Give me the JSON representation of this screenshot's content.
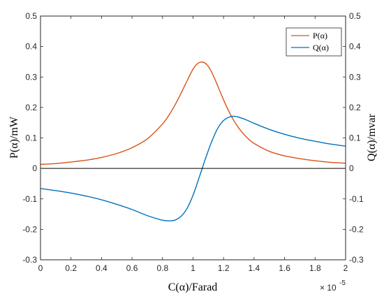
{
  "chart_data": {
    "type": "line",
    "title": "",
    "xlabel": "C(α)/Farad",
    "ylabel_left": "P(α)/mW",
    "ylabel_right": "Q(α)/mvar",
    "x_exponent_base": "× 10",
    "x_exponent_power": "-5",
    "xlim": [
      0,
      2
    ],
    "ylim": [
      -0.3,
      0.5
    ],
    "x_ticks": [
      "0",
      "0.2",
      "0.4",
      "0.6",
      "0.8",
      "1",
      "1.2",
      "1.4",
      "1.6",
      "1.8",
      "2"
    ],
    "y_ticks": [
      "-0.3",
      "-0.2",
      "-0.1",
      "0",
      "0.1",
      "0.2",
      "0.3",
      "0.4",
      "0.5"
    ],
    "grid": false,
    "legend_position": "top-right",
    "zero_line": true,
    "series": [
      {
        "name": "P(α)",
        "color": "#D95319",
        "x": [
          0,
          0.1,
          0.2,
          0.3,
          0.4,
          0.5,
          0.6,
          0.7,
          0.8,
          0.85,
          0.9,
          0.95,
          1.0,
          1.03,
          1.06,
          1.09,
          1.12,
          1.15,
          1.2,
          1.25,
          1.3,
          1.35,
          1.4,
          1.5,
          1.6,
          1.7,
          1.8,
          1.9,
          2.0
        ],
        "values": [
          0.013,
          0.016,
          0.021,
          0.027,
          0.036,
          0.049,
          0.068,
          0.097,
          0.146,
          0.181,
          0.225,
          0.276,
          0.326,
          0.344,
          0.349,
          0.341,
          0.318,
          0.285,
          0.225,
          0.172,
          0.132,
          0.103,
          0.082,
          0.056,
          0.041,
          0.032,
          0.025,
          0.02,
          0.017
        ]
      },
      {
        "name": "Q(α)",
        "color": "#0072BD",
        "x": [
          0,
          0.1,
          0.2,
          0.3,
          0.4,
          0.5,
          0.6,
          0.7,
          0.8,
          0.85,
          0.88,
          0.92,
          0.96,
          1.0,
          1.04,
          1.06,
          1.08,
          1.12,
          1.16,
          1.2,
          1.24,
          1.27,
          1.3,
          1.35,
          1.4,
          1.5,
          1.6,
          1.7,
          1.8,
          1.9,
          2.0
        ],
        "values": [
          -0.066,
          -0.073,
          -0.081,
          -0.091,
          -0.103,
          -0.118,
          -0.135,
          -0.155,
          -0.17,
          -0.172,
          -0.17,
          -0.158,
          -0.132,
          -0.088,
          -0.03,
          0.0,
          0.03,
          0.085,
          0.13,
          0.157,
          0.169,
          0.171,
          0.168,
          0.159,
          0.148,
          0.128,
          0.112,
          0.099,
          0.089,
          0.08,
          0.073
        ]
      }
    ]
  }
}
